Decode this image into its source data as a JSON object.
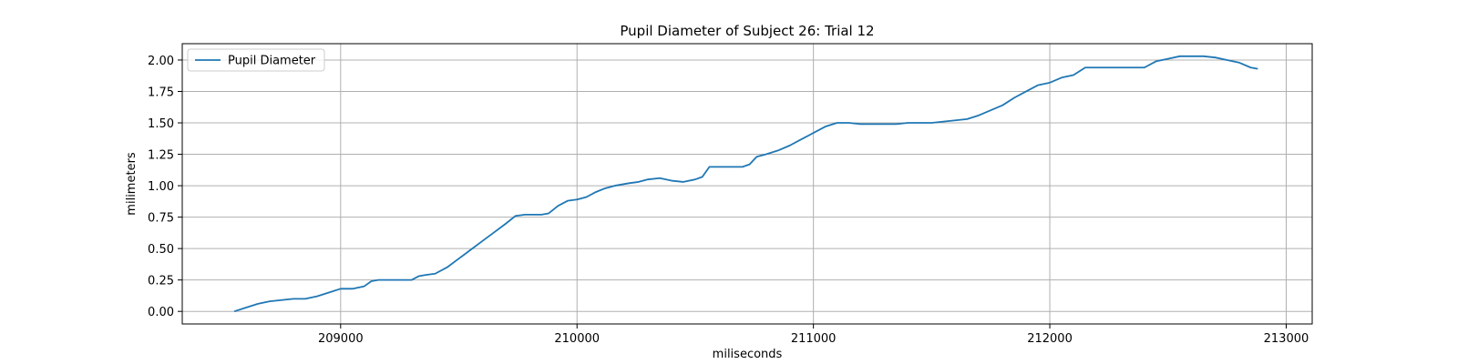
{
  "chart_data": {
    "type": "line",
    "title": "Pupil Diameter of Subject 26: Trial 12",
    "xlabel": "miliseconds",
    "ylabel": "milimeters",
    "xlim": [
      208330,
      213110
    ],
    "ylim": [
      -0.1,
      2.13
    ],
    "xticks": [
      209000,
      210000,
      211000,
      212000,
      213000
    ],
    "xtick_labels": [
      "209000",
      "210000",
      "211000",
      "212000",
      "213000"
    ],
    "yticks": [
      0.0,
      0.25,
      0.5,
      0.75,
      1.0,
      1.25,
      1.5,
      1.75,
      2.0
    ],
    "ytick_labels": [
      "0.00",
      "0.25",
      "0.50",
      "0.75",
      "1.00",
      "1.25",
      "1.50",
      "1.75",
      "2.00"
    ],
    "grid": true,
    "legend": {
      "position": "top-left",
      "entries": [
        "Pupil Diameter"
      ]
    },
    "series": [
      {
        "name": "Pupil Diameter",
        "color": "#1f77b4",
        "x": [
          208550,
          208600,
          208650,
          208700,
          208750,
          208800,
          208850,
          208900,
          208950,
          209000,
          209050,
          209100,
          209130,
          209160,
          209200,
          209300,
          209330,
          209360,
          209400,
          209450,
          209500,
          209550,
          209600,
          209650,
          209700,
          209740,
          209780,
          209850,
          209880,
          209920,
          209960,
          210000,
          210040,
          210080,
          210120,
          210160,
          210220,
          210260,
          210300,
          210350,
          210400,
          210450,
          210500,
          210530,
          210560,
          210600,
          210650,
          210700,
          210730,
          210760,
          210800,
          210850,
          210900,
          210950,
          211000,
          211050,
          211100,
          211150,
          211200,
          211250,
          211300,
          211350,
          211400,
          211450,
          211500,
          211550,
          211600,
          211650,
          211700,
          211750,
          211800,
          211850,
          211900,
          211950,
          212000,
          212050,
          212100,
          212150,
          212200,
          212300,
          212400,
          212450,
          212500,
          212550,
          212600,
          212650,
          212700,
          212750,
          212800,
          212850,
          212880
        ],
        "y": [
          0.0,
          0.03,
          0.06,
          0.08,
          0.09,
          0.1,
          0.1,
          0.12,
          0.15,
          0.18,
          0.18,
          0.2,
          0.24,
          0.25,
          0.25,
          0.25,
          0.28,
          0.29,
          0.3,
          0.35,
          0.42,
          0.49,
          0.56,
          0.63,
          0.7,
          0.76,
          0.77,
          0.77,
          0.78,
          0.84,
          0.88,
          0.89,
          0.91,
          0.95,
          0.98,
          1.0,
          1.02,
          1.03,
          1.05,
          1.06,
          1.04,
          1.03,
          1.05,
          1.07,
          1.15,
          1.15,
          1.15,
          1.15,
          1.17,
          1.23,
          1.25,
          1.28,
          1.32,
          1.37,
          1.42,
          1.47,
          1.5,
          1.5,
          1.49,
          1.49,
          1.49,
          1.49,
          1.5,
          1.5,
          1.5,
          1.51,
          1.52,
          1.53,
          1.56,
          1.6,
          1.64,
          1.7,
          1.75,
          1.8,
          1.82,
          1.86,
          1.88,
          1.94,
          1.94,
          1.94,
          1.94,
          1.99,
          2.01,
          2.03,
          2.03,
          2.03,
          2.02,
          2.0,
          1.98,
          1.94,
          1.93
        ]
      }
    ]
  }
}
